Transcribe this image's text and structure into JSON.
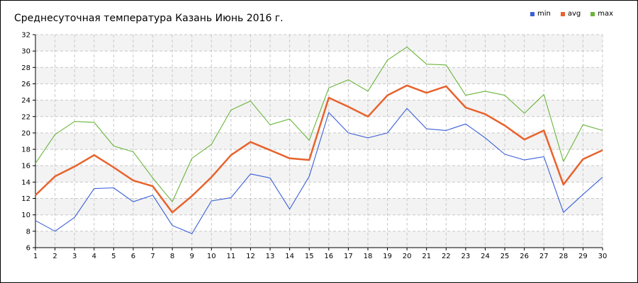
{
  "chart_data": {
    "type": "line",
    "title": "Среднесуточная температура Казань  Июнь 2016 г.",
    "xlabel": "",
    "ylabel": "",
    "x": [
      1,
      2,
      3,
      4,
      5,
      6,
      7,
      8,
      9,
      10,
      11,
      12,
      13,
      14,
      15,
      16,
      17,
      18,
      19,
      20,
      21,
      22,
      23,
      24,
      25,
      26,
      27,
      28,
      29,
      30
    ],
    "ylim": [
      6,
      32
    ],
    "yticks": [
      6,
      8,
      10,
      12,
      14,
      16,
      18,
      20,
      22,
      24,
      26,
      28,
      30,
      32
    ],
    "grid": true,
    "legend_position": "top-right",
    "series": [
      {
        "name": "min",
        "color": "#3a5fd8",
        "values": [
          9.3,
          8.0,
          9.7,
          13.2,
          13.3,
          11.6,
          12.4,
          8.7,
          7.7,
          11.7,
          12.1,
          15.0,
          14.5,
          10.7,
          14.7,
          22.5,
          20.0,
          19.4,
          20.0,
          23.0,
          20.5,
          20.3,
          21.1,
          19.4,
          17.4,
          16.7,
          17.1,
          10.3,
          12.5,
          14.6
        ]
      },
      {
        "name": "avg",
        "color": "#e8622c",
        "values": [
          12.4,
          14.7,
          15.9,
          17.3,
          15.8,
          14.2,
          13.5,
          10.3,
          12.3,
          14.6,
          17.3,
          18.9,
          17.9,
          16.9,
          16.7,
          24.3,
          23.2,
          22.0,
          24.6,
          25.8,
          24.9,
          25.7,
          23.1,
          22.3,
          20.9,
          19.2,
          20.3,
          13.7,
          16.8,
          17.9
        ]
      },
      {
        "name": "max",
        "color": "#69b53a",
        "values": [
          16.3,
          19.8,
          21.4,
          21.3,
          18.4,
          17.7,
          14.5,
          11.6,
          16.9,
          18.6,
          22.8,
          23.9,
          21.0,
          21.7,
          19.1,
          25.5,
          26.5,
          25.1,
          28.9,
          30.5,
          28.4,
          28.3,
          24.6,
          25.1,
          24.6,
          22.4,
          24.7,
          16.5,
          21.0,
          20.3
        ]
      }
    ]
  }
}
